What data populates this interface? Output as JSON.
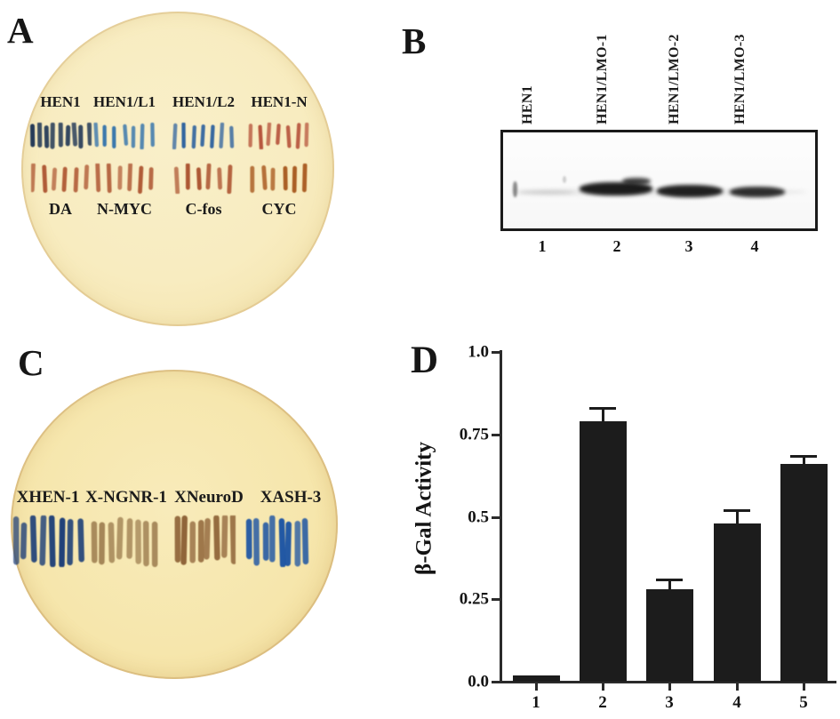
{
  "panels": {
    "a": {
      "letter": "A",
      "plate_color": "#f8ecc0",
      "plate_edge_color": "#eeda9e",
      "columns": [
        {
          "top_label": "HEN1",
          "top_color": "#1d3454",
          "bottom_label": "DA",
          "bottom_color": "#b05a36"
        },
        {
          "top_label": "HEN1/L1",
          "top_color": "#2d6fab",
          "bottom_label": "N-MYC",
          "bottom_color": "#b05a36"
        },
        {
          "top_label": "HEN1/L2",
          "top_color": "#2a5f9e",
          "bottom_label": "C-fos",
          "bottom_color": "#ad5532"
        },
        {
          "top_label": "HEN1-N",
          "top_color": "#b5523a",
          "bottom_label": "CYC",
          "bottom_color": "#a8591f"
        }
      ]
    },
    "b": {
      "letter": "B",
      "lanes": [
        {
          "label": "HEN1",
          "number": "1",
          "band": "faint"
        },
        {
          "label": "HEN1/LMO-1",
          "number": "2",
          "band": "strong"
        },
        {
          "label": "HEN1/LMO-2",
          "number": "3",
          "band": "strong"
        },
        {
          "label": "HEN1/LMO-3",
          "number": "4",
          "band": "medium"
        }
      ]
    },
    "c": {
      "letter": "C",
      "plate_color": "#f6e6ac",
      "plate_edge_color": "#e9cf88",
      "columns": [
        {
          "label": "XHEN-1",
          "color": "#1c3e78"
        },
        {
          "label": "X-NGNR-1",
          "color": "#9c7c4e"
        },
        {
          "label": "XNeuroD",
          "color": "#8d6136"
        },
        {
          "label": "XASH-3",
          "color": "#1e55a4"
        }
      ]
    },
    "d": {
      "letter": "D"
    }
  },
  "chart_data": {
    "type": "bar",
    "categories": [
      "1",
      "2",
      "3",
      "4",
      "5"
    ],
    "values": [
      0.02,
      0.79,
      0.28,
      0.48,
      0.66
    ],
    "errors": [
      0,
      0.04,
      0.03,
      0.04,
      0.025
    ],
    "title": "",
    "xlabel": "",
    "ylabel": "β-Gal Activity",
    "ylim": [
      0,
      1.0
    ],
    "yticks": [
      0,
      0.25,
      0.5,
      0.75,
      1.0
    ],
    "ytick_labels": [
      "0.0",
      "0.25",
      "0.5",
      "0.75",
      "1.0"
    ],
    "grid": false,
    "legend": false,
    "bar_color": "#1c1c1c",
    "axis_color": "#2b2b2b"
  }
}
